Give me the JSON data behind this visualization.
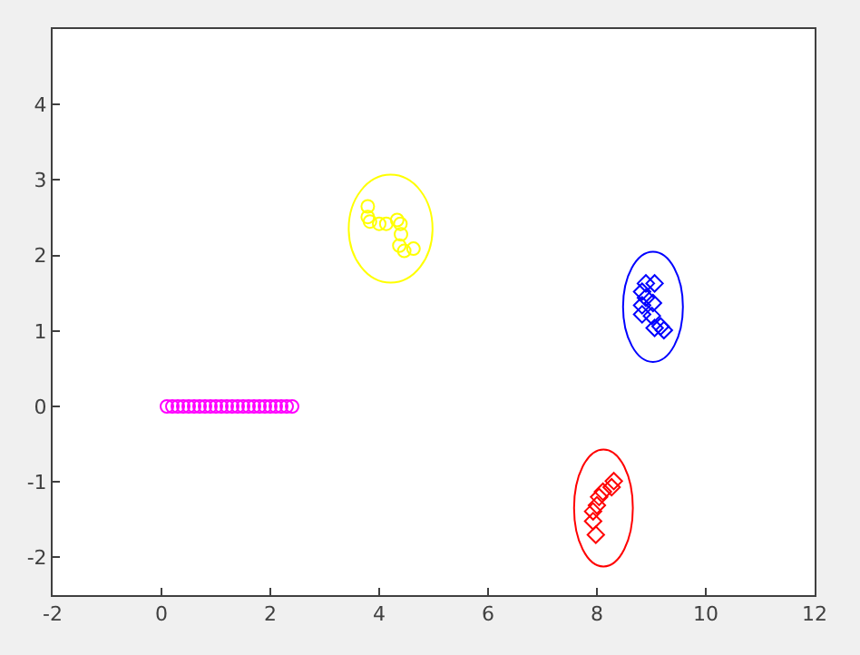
{
  "chart_data": {
    "type": "scatter",
    "xlim": [
      -2,
      12
    ],
    "ylim": [
      -2.5,
      5
    ],
    "xticks": [
      -2,
      0,
      2,
      4,
      6,
      8,
      10,
      12
    ],
    "yticks": [
      -2,
      -1,
      0,
      1,
      2,
      3,
      4
    ],
    "series": [
      {
        "marker": "circle",
        "color": "#ff00ff",
        "x": [
          0.1,
          0.2,
          0.3,
          0.4,
          0.5,
          0.6,
          0.7,
          0.8,
          0.9,
          1.0,
          1.1,
          1.2,
          1.3,
          1.4,
          1.5,
          1.6,
          1.7,
          1.8,
          1.9,
          2.0,
          2.1,
          2.2,
          2.3,
          2.4
        ],
        "values": [
          0,
          0,
          0,
          0,
          0,
          0,
          0,
          0,
          0,
          0,
          0,
          0,
          0,
          0,
          0,
          0,
          0,
          0,
          0,
          0,
          0,
          0,
          0,
          0
        ]
      },
      {
        "marker": "circle",
        "color": "#ffff00",
        "x": [
          3.79,
          3.79,
          3.83,
          4.0,
          4.13,
          4.33,
          4.39,
          4.4,
          4.37,
          4.63,
          4.46
        ],
        "values": [
          2.65,
          2.51,
          2.45,
          2.42,
          2.42,
          2.47,
          2.42,
          2.28,
          2.13,
          2.09,
          2.06
        ]
      },
      {
        "marker": "diamond",
        "color": "#0000ff",
        "x": [
          8.9,
          9.06,
          8.83,
          8.9,
          8.83,
          9.03,
          8.83,
          9.01,
          9.06,
          9.17,
          9.23
        ],
        "values": [
          1.63,
          1.63,
          1.52,
          1.44,
          1.34,
          1.37,
          1.22,
          1.2,
          1.04,
          1.06,
          1.01
        ]
      },
      {
        "marker": "diamond",
        "color": "#ff0000",
        "x": [
          8.31,
          8.27,
          8.11,
          8.04,
          8.0,
          7.93,
          7.93,
          7.98
        ],
        "values": [
          -0.99,
          -1.07,
          -1.13,
          -1.2,
          -1.31,
          -1.39,
          -1.52,
          -1.7
        ]
      }
    ]
  }
}
